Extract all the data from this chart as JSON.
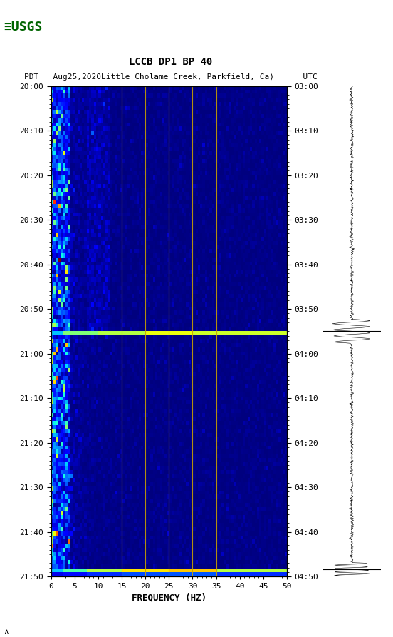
{
  "title_line1": "LCCB DP1 BP 40",
  "title_line2": "PDT   Aug25,2020Little Cholame Creek, Parkfield, Ca)      UTC",
  "xlabel": "FREQUENCY (HZ)",
  "left_times": [
    "20:00",
    "20:10",
    "20:20",
    "20:30",
    "20:40",
    "20:50",
    "21:00",
    "21:10",
    "21:20",
    "21:30",
    "21:40",
    "21:50"
  ],
  "right_times": [
    "03:00",
    "03:10",
    "03:20",
    "03:30",
    "03:40",
    "03:50",
    "04:00",
    "04:10",
    "04:20",
    "04:30",
    "04:40",
    "04:50"
  ],
  "freq_ticks": [
    0,
    5,
    10,
    15,
    20,
    25,
    30,
    35,
    40,
    45,
    50
  ],
  "freq_min": 0,
  "freq_max": 50,
  "n_times": 120,
  "n_freqs": 100,
  "vertical_lines_freq": [
    15,
    20,
    25,
    30,
    35
  ],
  "event_row1": 60,
  "event_row2": 118,
  "colormap": "jet"
}
